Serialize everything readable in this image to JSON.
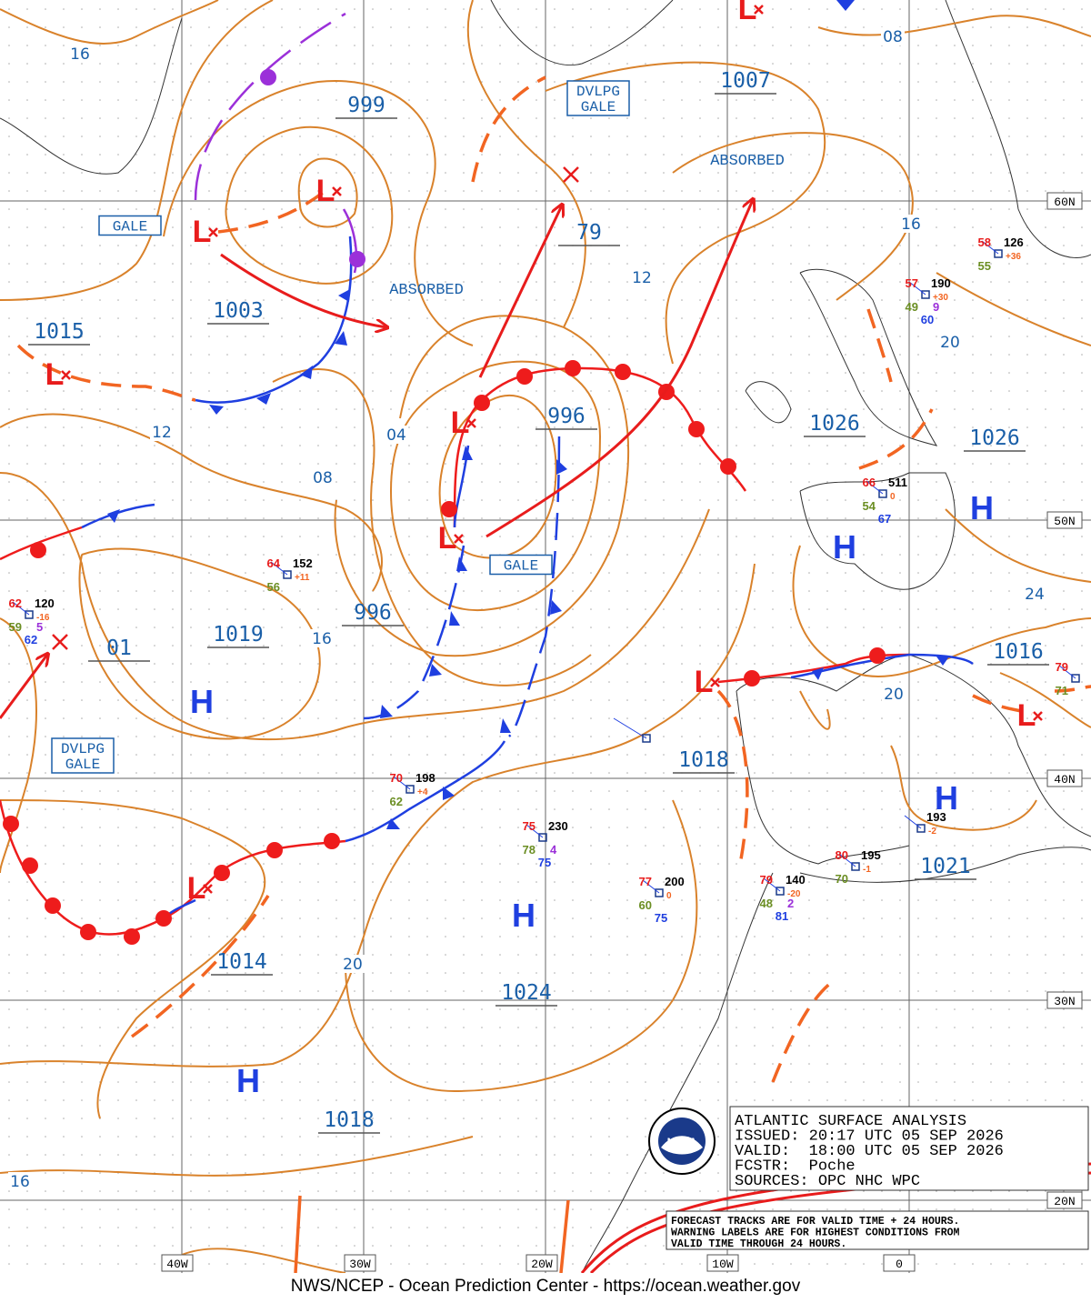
{
  "pressure_labels": [
    "999",
    "1007",
    "79",
    "1003",
    "1015",
    "996",
    "1026",
    "1026",
    "996",
    "1019",
    "01",
    "1016",
    "1018",
    "1021",
    "1014",
    "1024",
    "1018"
  ],
  "isobar_labels": [
    "16",
    "08",
    "12",
    "16",
    "20",
    "12",
    "04",
    "08",
    "16",
    "24",
    "20",
    "20",
    "16"
  ],
  "warnings": [
    [
      "GALE"
    ],
    [
      "DVLPG",
      "GALE"
    ],
    [
      "GALE"
    ],
    [
      "DVLPG",
      "GALE"
    ]
  ],
  "absorbed": [
    "ABSORBED",
    "ABSORBED"
  ],
  "highs": [
    "H",
    "H",
    "H",
    "H",
    "H",
    "H"
  ],
  "lows": [
    "L",
    "L",
    "L",
    "L",
    "L",
    "L",
    "L",
    "L",
    "L"
  ],
  "lat_labels": [
    "60N",
    "50N",
    "40N",
    "30N",
    "20N"
  ],
  "lon_labels": [
    "40W",
    "30W",
    "20W",
    "10W",
    "0"
  ],
  "stations": [
    {
      "temp": 64,
      "pressure": 152,
      "tendency": "+11",
      "dewpoint": 56
    },
    {
      "temp": 62,
      "pressure": 120,
      "tendency": "-16",
      "dewpoint": 59,
      "wave": 5,
      "sst": 62
    },
    {
      "temp": 70,
      "pressure": 198,
      "tendency": "+4",
      "dewpoint": 62
    },
    {
      "temp": 75,
      "pressure": 230,
      "dewpoint": 78,
      "wave": 4,
      "sst": 75
    },
    {
      "temp": 77,
      "pressure": 200,
      "tendency": "0",
      "dewpoint": 60,
      "sst": 75
    },
    {
      "temp": 79,
      "pressure": 140,
      "tendency": "-20",
      "dewpoint": 48,
      "wave": 2,
      "sst": 81
    },
    {
      "temp": 80,
      "pressure": 195,
      "tendency": "-1",
      "dewpoint": 70
    },
    {
      "pressure": 193,
      "tendency": "-2"
    },
    {
      "temp": 57,
      "pressure": 190,
      "tendency": "+30",
      "dewpoint": 49,
      "wave": 9,
      "sst": 60
    },
    {
      "temp": 58,
      "pressure": 126,
      "tendency": "+36",
      "dewpoint": 55
    },
    {
      "temp": 66,
      "pressure": 511,
      "tendency": "0",
      "dewpoint": 54,
      "sst": 67
    },
    {
      "temp": 79,
      "dewpoint": 71
    }
  ],
  "title_box": [
    "ATLANTIC SURFACE ANALYSIS",
    "ISSUED: 20:17 UTC 05 SEP 2026",
    "VALID:  18:00 UTC 05 SEP 2026",
    "FCSTR:  Poche",
    "SOURCES: OPC NHC WPC"
  ],
  "note_box": [
    "FORECAST TRACKS ARE FOR VALID TIME + 24 HOURS.",
    "WARNING LABELS ARE FOR HIGHEST CONDITIONS FROM",
    "VALID TIME THROUGH 24 HOURS."
  ],
  "logo": "NOAA",
  "footer": "NWS/NCEP - Ocean Prediction Center - https://ocean.weather.gov"
}
